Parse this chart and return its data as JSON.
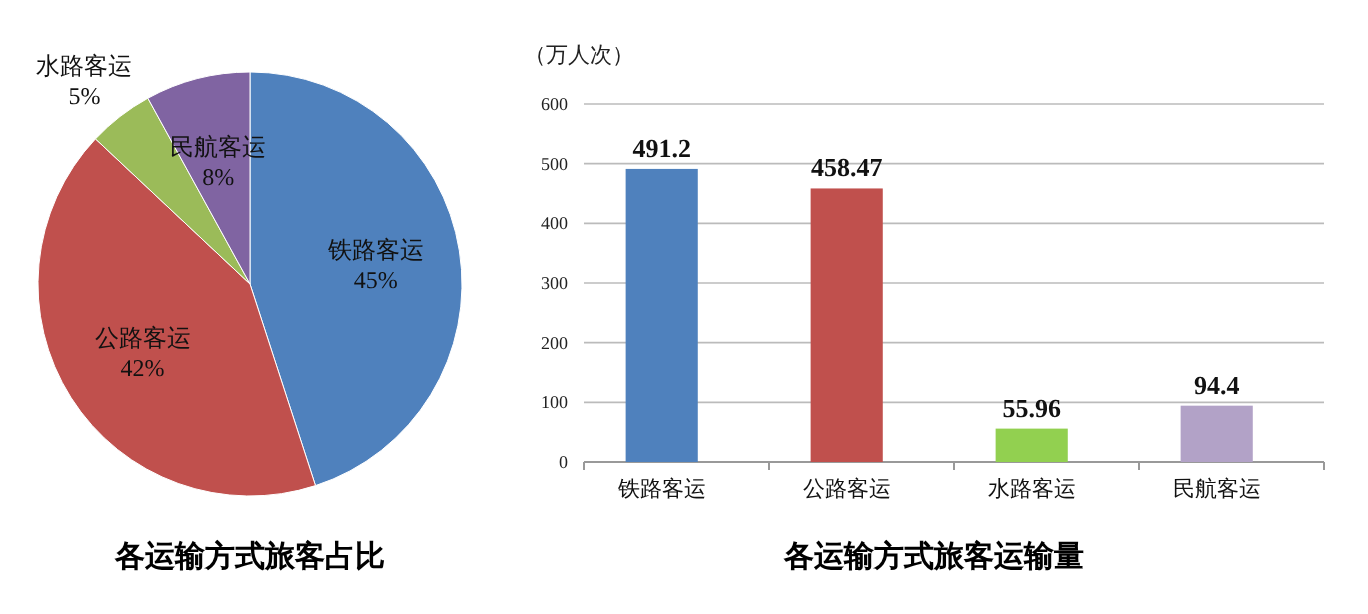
{
  "chart_data": [
    {
      "type": "pie",
      "title": "各运输方式旅客占比",
      "categories": [
        "铁路客运",
        "公路客运",
        "水路客运",
        "民航客运"
      ],
      "values": [
        45,
        42,
        5,
        8
      ],
      "value_labels": [
        "45%",
        "42%",
        "5%",
        "8%"
      ],
      "colors": [
        "#4f81bd",
        "#c0504d",
        "#9bbb59",
        "#8064a2"
      ]
    },
    {
      "type": "bar",
      "title": "各运输方式旅客运输量",
      "ylabel": "（万人次）",
      "categories": [
        "铁路客运",
        "公路客运",
        "水路客运",
        "民航客运"
      ],
      "values": [
        491.2,
        458.47,
        55.96,
        94.4
      ],
      "colors": [
        "#4f81bd",
        "#c0504d",
        "#92d050",
        "#b2a2c7"
      ],
      "ylim": [
        0,
        600
      ],
      "yticks": [
        0,
        100,
        200,
        300,
        400,
        500,
        600
      ],
      "grid": "y",
      "data_labels": true
    }
  ]
}
